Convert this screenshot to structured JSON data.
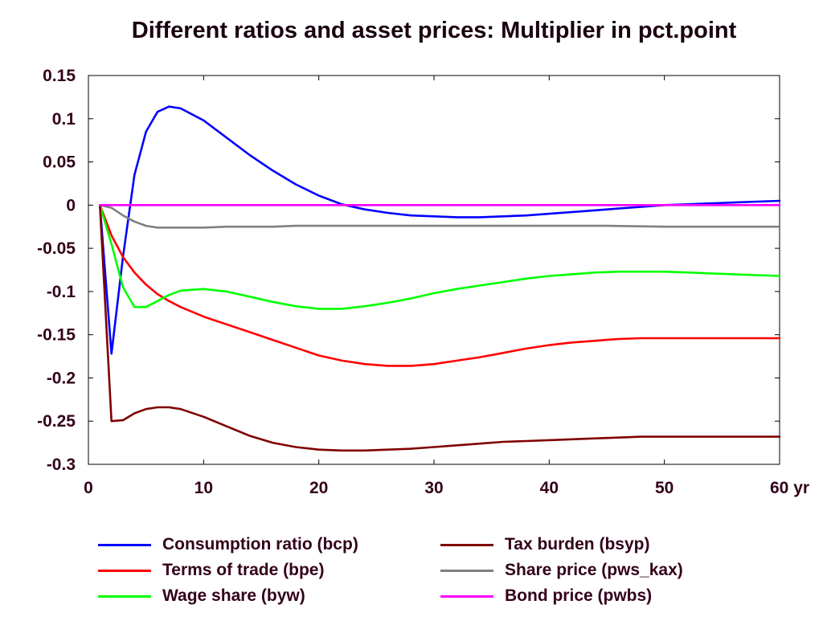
{
  "chart_data": {
    "type": "line",
    "title": "Different ratios and asset prices: Multiplier in pct.point",
    "xlabel": "",
    "ylabel": "",
    "xlim": [
      0,
      60
    ],
    "ylim": [
      -0.3,
      0.15
    ],
    "x_ticks": [
      {
        "value": 0,
        "label": "0"
      },
      {
        "value": 10,
        "label": "10"
      },
      {
        "value": 20,
        "label": "20"
      },
      {
        "value": 30,
        "label": "30"
      },
      {
        "value": 40,
        "label": "40"
      },
      {
        "value": 50,
        "label": "50"
      },
      {
        "value": 60,
        "label": "60 yr"
      }
    ],
    "y_ticks": [
      {
        "value": 0.15,
        "label": "0.15"
      },
      {
        "value": 0.1,
        "label": "0.1"
      },
      {
        "value": 0.05,
        "label": "0.05"
      },
      {
        "value": 0,
        "label": "0"
      },
      {
        "value": -0.05,
        "label": "-0.05"
      },
      {
        "value": -0.1,
        "label": "-0.1"
      },
      {
        "value": -0.15,
        "label": "-0.15"
      },
      {
        "value": -0.2,
        "label": "-0.2"
      },
      {
        "value": -0.25,
        "label": "-0.25"
      },
      {
        "value": -0.3,
        "label": "-0.3"
      }
    ],
    "grid": false,
    "legend_position": "bottom",
    "series": [
      {
        "name": "Consumption ratio (bcp)",
        "color": "#0000ff",
        "points": [
          [
            1,
            0
          ],
          [
            2,
            -0.172
          ],
          [
            3,
            -0.06
          ],
          [
            4,
            0.035
          ],
          [
            5,
            0.085
          ],
          [
            6,
            0.108
          ],
          [
            7,
            0.114
          ],
          [
            8,
            0.112
          ],
          [
            10,
            0.098
          ],
          [
            12,
            0.078
          ],
          [
            14,
            0.058
          ],
          [
            16,
            0.04
          ],
          [
            18,
            0.024
          ],
          [
            20,
            0.011
          ],
          [
            22,
            0.001
          ],
          [
            24,
            -0.005
          ],
          [
            26,
            -0.009
          ],
          [
            28,
            -0.012
          ],
          [
            30,
            -0.013
          ],
          [
            32,
            -0.014
          ],
          [
            34,
            -0.014
          ],
          [
            36,
            -0.013
          ],
          [
            38,
            -0.012
          ],
          [
            40,
            -0.01
          ],
          [
            42,
            -0.008
          ],
          [
            44,
            -0.006
          ],
          [
            46,
            -0.004
          ],
          [
            48,
            -0.002
          ],
          [
            50,
            0
          ],
          [
            52,
            0.001
          ],
          [
            54,
            0.002
          ],
          [
            56,
            0.003
          ],
          [
            58,
            0.004
          ],
          [
            60,
            0.005
          ]
        ]
      },
      {
        "name": "Terms of trade (bpe)",
        "color": "#ff0000",
        "points": [
          [
            1,
            0
          ],
          [
            2,
            -0.035
          ],
          [
            3,
            -0.06
          ],
          [
            4,
            -0.078
          ],
          [
            5,
            -0.092
          ],
          [
            6,
            -0.103
          ],
          [
            7,
            -0.111
          ],
          [
            8,
            -0.118
          ],
          [
            10,
            -0.129
          ],
          [
            12,
            -0.138
          ],
          [
            14,
            -0.147
          ],
          [
            16,
            -0.156
          ],
          [
            18,
            -0.165
          ],
          [
            20,
            -0.174
          ],
          [
            22,
            -0.18
          ],
          [
            24,
            -0.184
          ],
          [
            26,
            -0.186
          ],
          [
            28,
            -0.186
          ],
          [
            30,
            -0.184
          ],
          [
            32,
            -0.18
          ],
          [
            34,
            -0.176
          ],
          [
            36,
            -0.171
          ],
          [
            38,
            -0.166
          ],
          [
            40,
            -0.162
          ],
          [
            42,
            -0.159
          ],
          [
            44,
            -0.157
          ],
          [
            46,
            -0.155
          ],
          [
            48,
            -0.154
          ],
          [
            50,
            -0.154
          ],
          [
            52,
            -0.154
          ],
          [
            54,
            -0.154
          ],
          [
            56,
            -0.154
          ],
          [
            58,
            -0.154
          ],
          [
            60,
            -0.154
          ]
        ]
      },
      {
        "name": "Wage share (byw)",
        "color": "#00ff00",
        "points": [
          [
            1,
            0
          ],
          [
            2,
            -0.045
          ],
          [
            3,
            -0.095
          ],
          [
            4,
            -0.118
          ],
          [
            5,
            -0.118
          ],
          [
            6,
            -0.111
          ],
          [
            7,
            -0.104
          ],
          [
            8,
            -0.099
          ],
          [
            10,
            -0.097
          ],
          [
            12,
            -0.1
          ],
          [
            14,
            -0.106
          ],
          [
            16,
            -0.112
          ],
          [
            18,
            -0.117
          ],
          [
            20,
            -0.12
          ],
          [
            22,
            -0.12
          ],
          [
            24,
            -0.117
          ],
          [
            26,
            -0.113
          ],
          [
            28,
            -0.108
          ],
          [
            30,
            -0.102
          ],
          [
            32,
            -0.097
          ],
          [
            34,
            -0.093
          ],
          [
            36,
            -0.089
          ],
          [
            38,
            -0.085
          ],
          [
            40,
            -0.082
          ],
          [
            42,
            -0.08
          ],
          [
            44,
            -0.078
          ],
          [
            46,
            -0.077
          ],
          [
            48,
            -0.077
          ],
          [
            50,
            -0.077
          ],
          [
            52,
            -0.078
          ],
          [
            54,
            -0.079
          ],
          [
            56,
            -0.08
          ],
          [
            58,
            -0.081
          ],
          [
            60,
            -0.082
          ]
        ]
      },
      {
        "name": "Tax burden (bsyp)",
        "color": "#800000",
        "points": [
          [
            1,
            0
          ],
          [
            2,
            -0.25
          ],
          [
            3,
            -0.249
          ],
          [
            4,
            -0.241
          ],
          [
            5,
            -0.236
          ],
          [
            6,
            -0.234
          ],
          [
            7,
            -0.234
          ],
          [
            8,
            -0.236
          ],
          [
            10,
            -0.245
          ],
          [
            12,
            -0.256
          ],
          [
            14,
            -0.267
          ],
          [
            16,
            -0.275
          ],
          [
            18,
            -0.28
          ],
          [
            20,
            -0.283
          ],
          [
            22,
            -0.284
          ],
          [
            24,
            -0.284
          ],
          [
            26,
            -0.283
          ],
          [
            28,
            -0.282
          ],
          [
            30,
            -0.28
          ],
          [
            32,
            -0.278
          ],
          [
            34,
            -0.276
          ],
          [
            36,
            -0.274
          ],
          [
            38,
            -0.273
          ],
          [
            40,
            -0.272
          ],
          [
            42,
            -0.271
          ],
          [
            44,
            -0.27
          ],
          [
            46,
            -0.269
          ],
          [
            48,
            -0.268
          ],
          [
            50,
            -0.268
          ],
          [
            52,
            -0.268
          ],
          [
            54,
            -0.268
          ],
          [
            56,
            -0.268
          ],
          [
            58,
            -0.268
          ],
          [
            60,
            -0.268
          ]
        ]
      },
      {
        "name": "Share price (pws_kax)",
        "color": "#808080",
        "points": [
          [
            1,
            0
          ],
          [
            2,
            -0.003
          ],
          [
            3,
            -0.012
          ],
          [
            4,
            -0.019
          ],
          [
            5,
            -0.024
          ],
          [
            6,
            -0.026
          ],
          [
            8,
            -0.026
          ],
          [
            10,
            -0.026
          ],
          [
            12,
            -0.025
          ],
          [
            14,
            -0.025
          ],
          [
            16,
            -0.025
          ],
          [
            18,
            -0.024
          ],
          [
            20,
            -0.024
          ],
          [
            25,
            -0.024
          ],
          [
            30,
            -0.024
          ],
          [
            35,
            -0.024
          ],
          [
            40,
            -0.024
          ],
          [
            45,
            -0.024
          ],
          [
            50,
            -0.025
          ],
          [
            55,
            -0.025
          ],
          [
            60,
            -0.025
          ]
        ]
      },
      {
        "name": "Bond price (pwbs)",
        "color": "#ff00ff",
        "points": [
          [
            1,
            0
          ],
          [
            10,
            0
          ],
          [
            20,
            0
          ],
          [
            30,
            0
          ],
          [
            40,
            0
          ],
          [
            50,
            0
          ],
          [
            60,
            0
          ]
        ]
      }
    ]
  }
}
